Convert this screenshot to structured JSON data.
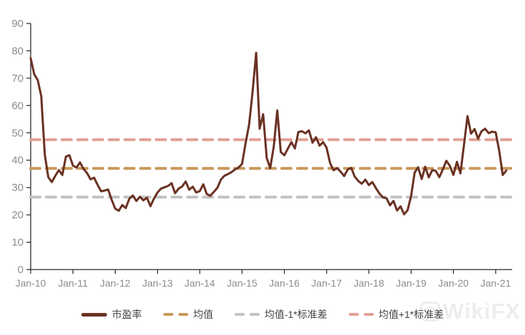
{
  "watermark": {
    "text": "WikiFX"
  },
  "chart_data": {
    "type": "line",
    "title": "",
    "xlabel": "",
    "ylabel": "",
    "ylim": [
      0,
      90
    ],
    "y_ticks": [
      0,
      10,
      20,
      30,
      40,
      50,
      60,
      70,
      80,
      90
    ],
    "xlim_years": [
      2010,
      2021.39
    ],
    "x_tick_years": [
      2010,
      2011,
      2012,
      2013,
      2014,
      2015,
      2016,
      2017,
      2018,
      2019,
      2020,
      2021
    ],
    "x_tick_labels": [
      "Jan-10",
      "Jan-11",
      "Jan-12",
      "Jan-13",
      "Jan-14",
      "Jan-15",
      "Jan-16",
      "Jan-17",
      "Jan-18",
      "Jan-19",
      "Jan-20",
      "Jan-21"
    ],
    "grid": false,
    "legend_position": "bottom",
    "series": [
      {
        "name": "市盈率",
        "type": "line",
        "style": "solid",
        "color": "#6a3122",
        "start_year": 2010,
        "points_per_year": 12,
        "values": [
          77.3,
          71.5,
          69.3,
          63.5,
          42.0,
          33.8,
          32.0,
          34.3,
          36.4,
          34.6,
          41.3,
          41.8,
          38.0,
          37.3,
          39.2,
          36.8,
          35.3,
          33.0,
          33.6,
          31.0,
          28.6,
          28.9,
          29.3,
          25.5,
          22.3,
          21.5,
          23.6,
          22.5,
          25.9,
          27.1,
          25.1,
          26.6,
          25.3,
          26.3,
          23.2,
          25.9,
          28.2,
          29.6,
          30.1,
          30.6,
          31.6,
          27.9,
          29.6,
          30.4,
          32.2,
          29.2,
          30.3,
          28.2,
          28.7,
          31.2,
          27.6,
          27.0,
          28.4,
          29.9,
          32.9,
          34.3,
          34.9,
          35.6,
          36.6,
          37.3,
          38.6,
          46.2,
          53.0,
          65.0,
          79.3,
          51.5,
          56.8,
          40.8,
          37.1,
          45.0,
          58.2,
          43.0,
          41.8,
          44.2,
          46.6,
          44.3,
          50.3,
          50.6,
          49.8,
          50.9,
          46.4,
          48.4,
          45.3,
          46.6,
          44.6,
          38.9,
          36.3,
          37.1,
          35.8,
          34.2,
          36.6,
          37.2,
          34.0,
          32.4,
          31.4,
          32.9,
          30.9,
          32.0,
          29.8,
          27.8,
          26.4,
          26.1,
          23.5,
          25.1,
          21.6,
          23.1,
          20.2,
          21.7,
          27.0,
          35.5,
          37.4,
          33.1,
          37.6,
          33.7,
          36.4,
          36.1,
          33.8,
          36.6,
          39.8,
          37.9,
          34.6,
          39.4,
          35.2,
          45.5,
          56.1,
          49.7,
          51.4,
          47.9,
          50.6,
          51.5,
          49.9,
          50.4,
          50.2,
          43.5,
          34.6,
          36.2
        ]
      },
      {
        "name": "均值",
        "type": "hline",
        "style": "dashed",
        "color": "#c9985c",
        "value": 37.0
      },
      {
        "name": "均值-1*标准差",
        "type": "hline",
        "style": "dashed",
        "color": "#c3c3c3",
        "value": 26.5
      },
      {
        "name": "均值+1*标准差",
        "type": "hline",
        "style": "dashed",
        "color": "#e2a095",
        "value": 47.5
      }
    ]
  }
}
